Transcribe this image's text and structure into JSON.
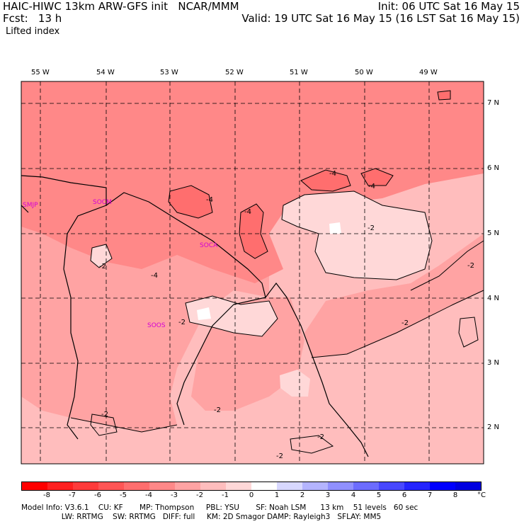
{
  "header": {
    "left_line1": "HAIC-HIWC 13km ARW-GFS init   NCAR/MMM",
    "left_line2": "Fcst:   13 h",
    "left_line3": "Lifted index",
    "right_line1": "Init: 06 UTC Sat 16 May 15",
    "right_line2": "Valid: 19 UTC Sat 16 May 15 (16 LST Sat 16 May 15)"
  },
  "longitude_labels": [
    "55 W",
    "54 W",
    "53 W",
    "52 W",
    "51 W",
    "50 W",
    "49 W"
  ],
  "latitude_labels": [
    "7 N",
    "6 N",
    "5 N",
    "4 N",
    "3 N",
    "2 N"
  ],
  "stations": [
    "SMJP",
    "SOCM",
    "SOCA",
    "SOOS"
  ],
  "contour_labels": [
    "-4",
    "-4",
    "-4",
    "-4",
    "-4",
    "-2",
    "-2",
    "-2",
    "-2",
    "-2",
    "-2",
    "-2",
    "-2",
    "-2"
  ],
  "colorbar": {
    "labels": [
      "-8",
      "-7",
      "-6",
      "-5",
      "-4",
      "-3",
      "-2",
      "-1",
      "0",
      "1",
      "2",
      "3",
      "4",
      "5",
      "6",
      "7",
      "8"
    ],
    "unit": "°C",
    "colors": [
      "#ff0000",
      "#ff2020",
      "#ff3b3b",
      "#ff5555",
      "#ff6e6e",
      "#ff8888",
      "#ffa3a3",
      "#ffbdbd",
      "#ffd8d8",
      "#ffffff",
      "#d8d8ff",
      "#b4b4ff",
      "#9090ff",
      "#6c6cff",
      "#4848ff",
      "#2424ff",
      "#0000ff",
      "#0000e0"
    ]
  },
  "footer": {
    "line1": "Model Info: V3.6.1    CU: KF       MP: Thompson     PBL: YSU       SF: Noah LSM      13 km    51 levels   60 sec",
    "line2": "                 LW: RRTMG    SW: RRTMG   DIFF: full     KM: 2D Smagor DAMP: Rayleigh3   SFLAY: MM5"
  }
}
